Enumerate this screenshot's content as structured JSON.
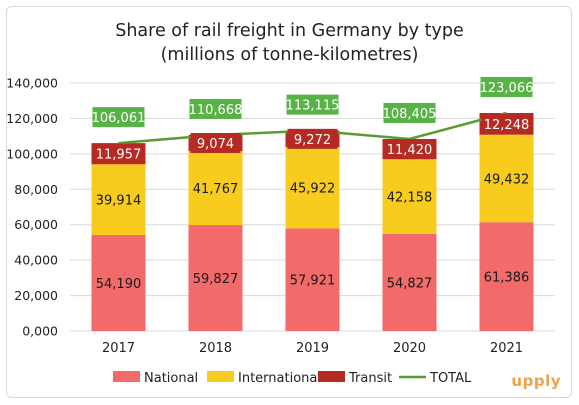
{
  "title_line1": "Share of rail freight in Germany by type",
  "title_line2": "(millions of tonne-kilometres)",
  "brand": "upply",
  "colors": {
    "national": "#f26a6a",
    "international": "#f7cc1f",
    "transit": "#b52a22",
    "total_line": "#5e9a32",
    "total_label_bg": "#58b347",
    "grid": "#d9d9d9",
    "axis_text": "#222222",
    "brand": "#f0a24a"
  },
  "chart_data": {
    "type": "bar",
    "stacked": true,
    "title": "Share of rail freight in Germany by type\n(millions of tonne-kilometres)",
    "categories": [
      "2017",
      "2018",
      "2019",
      "2020",
      "2021"
    ],
    "series": [
      {
        "name": "National",
        "kind": "bar",
        "values": [
          54190,
          59827,
          57921,
          54827,
          61386
        ],
        "labels": [
          "54,190",
          "59,827",
          "57,921",
          "54,827",
          "61,386"
        ]
      },
      {
        "name": "International",
        "kind": "bar",
        "values": [
          39914,
          41767,
          45922,
          42158,
          49432
        ],
        "labels": [
          "39,914",
          "41,767",
          "45,922",
          "42,158",
          "49,432"
        ]
      },
      {
        "name": "Transit",
        "kind": "bar",
        "values": [
          11957,
          9074,
          9272,
          11420,
          12248
        ],
        "labels": [
          "11,957",
          "9,074",
          "9,272",
          "11,420",
          "12,248"
        ]
      },
      {
        "name": "TOTAL",
        "kind": "line",
        "values": [
          106061,
          110668,
          113115,
          108405,
          123066
        ],
        "labels": [
          "106,061",
          "110,668",
          "113,115",
          "108,405",
          "123,066"
        ]
      }
    ],
    "ylim": [
      0,
      140000
    ],
    "yticks": [
      0,
      20000,
      40000,
      60000,
      80000,
      100000,
      120000,
      140000
    ],
    "ytick_labels": [
      "0,000",
      "20,000",
      "40,000",
      "60,000",
      "80,000",
      "100,000",
      "120,000",
      "140,000"
    ],
    "grid": true,
    "legend_position": "bottom",
    "legend": [
      "National",
      "International",
      "Transit",
      "TOTAL"
    ]
  }
}
